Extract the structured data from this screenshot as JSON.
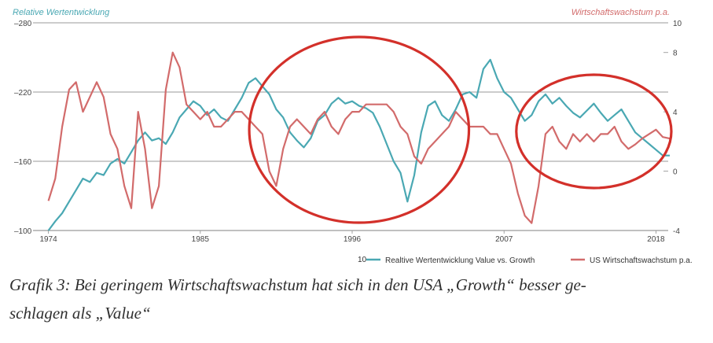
{
  "chart_data": {
    "type": "line",
    "left_axis_title": "Relative Wertentwicklung",
    "right_axis_title": "Wirtschaftswachstum p.a.",
    "left_ticks": [
      "–280",
      "–220",
      "–160",
      "–100"
    ],
    "right_ticks": [
      "10",
      "8",
      "4",
      "0",
      "-4"
    ],
    "x_ticks": [
      "1974",
      "1985",
      "1996",
      "2007",
      "2018"
    ],
    "ylim_left": [
      100,
      280
    ],
    "ylim_right": [
      -4,
      10
    ],
    "xlim": [
      1973,
      2019
    ],
    "grid": true,
    "legend_position": "bottom-right",
    "legend_small": "10",
    "colors": {
      "value_growth": "#4aa8b3",
      "gdp": "#d26b6b",
      "circle": "#d3302a"
    },
    "series": [
      {
        "name": "Realtive Wertentwicklung Value vs. Growth",
        "axis": "left",
        "x": [
          1974,
          1974.5,
          1975,
          1975.5,
          1976,
          1976.5,
          1977,
          1977.5,
          1978,
          1978.5,
          1979,
          1979.5,
          1980,
          1980.5,
          1981,
          1981.5,
          1982,
          1982.5,
          1983,
          1983.5,
          1984,
          1984.5,
          1985,
          1985.5,
          1986,
          1986.5,
          1987,
          1987.5,
          1988,
          1988.5,
          1989,
          1989.5,
          1990,
          1990.5,
          1991,
          1991.5,
          1992,
          1992.5,
          1993,
          1993.5,
          1994,
          1994.5,
          1995,
          1995.5,
          1996,
          1996.5,
          1997,
          1997.5,
          1998,
          1998.5,
          1999,
          1999.5,
          2000,
          2000.5,
          2001,
          2001.5,
          2002,
          2002.5,
          2003,
          2003.5,
          2004,
          2004.5,
          2005,
          2005.5,
          2006,
          2006.5,
          2007,
          2007.5,
          2008,
          2008.5,
          2009,
          2009.5,
          2010,
          2010.5,
          2011,
          2011.5,
          2012,
          2012.5,
          2013,
          2013.5,
          2014,
          2014.5,
          2015,
          2015.5,
          2016,
          2016.5,
          2017,
          2017.5,
          2018,
          2018.5,
          2019
        ],
        "values": [
          100,
          108,
          115,
          125,
          135,
          145,
          142,
          150,
          148,
          158,
          162,
          158,
          168,
          178,
          185,
          178,
          180,
          175,
          185,
          198,
          205,
          212,
          208,
          200,
          205,
          198,
          195,
          205,
          215,
          228,
          232,
          225,
          218,
          205,
          198,
          185,
          178,
          172,
          180,
          195,
          200,
          210,
          215,
          210,
          212,
          208,
          206,
          202,
          190,
          175,
          160,
          150,
          125,
          148,
          185,
          208,
          212,
          200,
          195,
          205,
          218,
          220,
          215,
          240,
          248,
          232,
          220,
          215,
          205,
          195,
          200,
          212,
          218,
          210,
          215,
          208,
          202,
          198,
          204,
          210,
          202,
          195,
          200,
          205,
          195,
          185,
          180,
          175,
          170,
          165,
          165
        ],
        "ylim": [
          100,
          280
        ]
      },
      {
        "name": "US Wirtschaftswachstum p.a.",
        "axis": "right",
        "x": [
          1974,
          1974.5,
          1975,
          1975.5,
          1976,
          1976.5,
          1977,
          1977.5,
          1978,
          1978.5,
          1979,
          1979.5,
          1980,
          1980.5,
          1981,
          1981.5,
          1982,
          1982.5,
          1983,
          1983.5,
          1984,
          1984.5,
          1985,
          1985.5,
          1986,
          1986.5,
          1987,
          1987.5,
          1988,
          1988.5,
          1989,
          1989.5,
          1990,
          1990.5,
          1991,
          1991.5,
          1992,
          1992.5,
          1993,
          1993.5,
          1994,
          1994.5,
          1995,
          1995.5,
          1996,
          1996.5,
          1997,
          1997.5,
          1998,
          1998.5,
          1999,
          1999.5,
          2000,
          2000.5,
          2001,
          2001.5,
          2002,
          2002.5,
          2003,
          2003.5,
          2004,
          2004.5,
          2005,
          2005.5,
          2006,
          2006.5,
          2007,
          2007.5,
          2008,
          2008.5,
          2009,
          2009.5,
          2010,
          2010.5,
          2011,
          2011.5,
          2012,
          2012.5,
          2013,
          2013.5,
          2014,
          2014.5,
          2015,
          2015.5,
          2016,
          2016.5,
          2017,
          2017.5,
          2018,
          2018.5,
          2019
        ],
        "values": [
          -2.0,
          -0.5,
          3.0,
          5.5,
          6.0,
          4.0,
          5.0,
          6.0,
          5.0,
          2.5,
          1.5,
          -1.0,
          -2.5,
          4.0,
          1.5,
          -2.5,
          -1.0,
          5.5,
          8.0,
          7.0,
          4.5,
          4.0,
          3.5,
          4.0,
          3.0,
          3.0,
          3.5,
          4.0,
          4.0,
          3.5,
          3.0,
          2.5,
          0.0,
          -1.0,
          1.5,
          3.0,
          3.5,
          3.0,
          2.5,
          3.5,
          4.0,
          3.0,
          2.5,
          3.5,
          4.0,
          4.0,
          4.5,
          4.5,
          4.5,
          4.5,
          4.0,
          3.0,
          2.5,
          1.0,
          0.5,
          1.5,
          2.0,
          2.5,
          3.0,
          4.0,
          3.5,
          3.0,
          3.0,
          3.0,
          2.5,
          2.5,
          1.5,
          0.5,
          -1.5,
          -3.0,
          -3.5,
          -1.0,
          2.5,
          3.0,
          2.0,
          1.5,
          2.5,
          2.0,
          2.5,
          2.0,
          2.5,
          2.5,
          3.0,
          2.0,
          1.5,
          1.8,
          2.2,
          2.5,
          2.8,
          2.3,
          2.2
        ]
      }
    ],
    "annotations": [
      {
        "type": "circle",
        "around": [
          1989,
          2004
        ]
      },
      {
        "type": "circle",
        "around": [
          2008,
          2019
        ]
      }
    ]
  },
  "caption": {
    "line1": "Grafik 3: Bei geringem Wirtschaftswachstum hat sich in den USA „Growth“ besser ge-",
    "line2": "schlagen als „Value“"
  }
}
